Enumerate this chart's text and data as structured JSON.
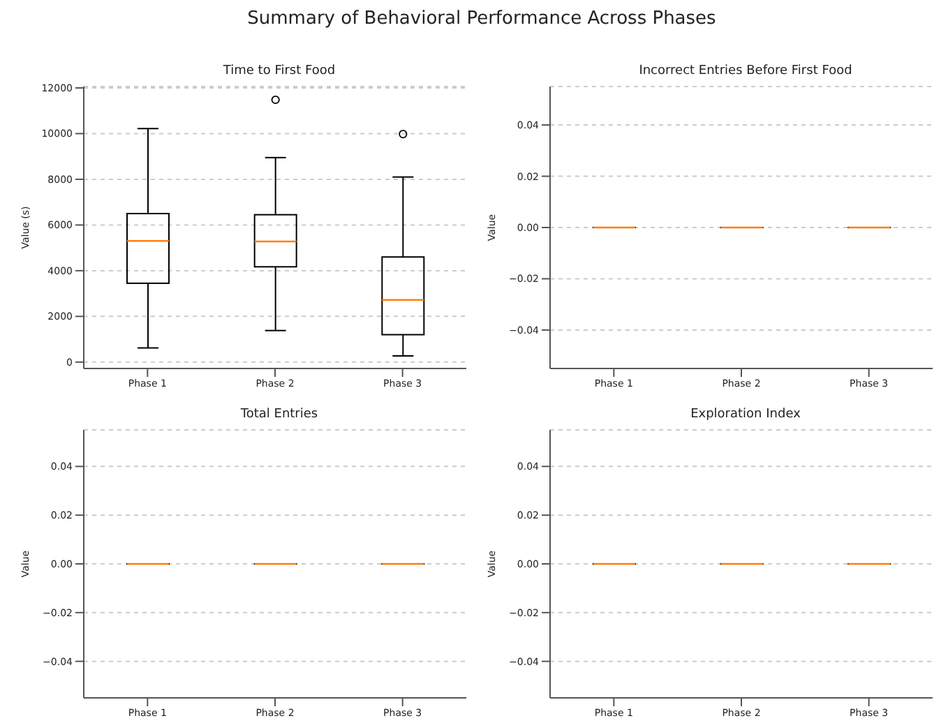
{
  "chart_data": [
    {
      "type": "box",
      "title": "Time to First Food",
      "ylabel": "Value (s)",
      "annotations": [
        "Summary of Behavioral Performance Across Phases"
      ],
      "categories": [
        "Phase 1",
        "Phase 2",
        "Phase 3"
      ],
      "boxes": [
        {
          "low": 620,
          "q1": 3450,
          "median": 5300,
          "q3": 6500,
          "high": 10220
        },
        {
          "low": 1380,
          "q1": 4170,
          "median": 5280,
          "q3": 6450,
          "high": 8950,
          "outliers": [
            11480
          ]
        },
        {
          "low": 270,
          "q1": 1200,
          "median": 2720,
          "q3": 4600,
          "high": 8100,
          "outliers": [
            9980
          ]
        }
      ],
      "ylim": [
        -280,
        12060
      ],
      "yticks": [
        0,
        2000,
        4000,
        6000,
        8000,
        10000,
        12000
      ],
      "grid": "y"
    },
    {
      "type": "box",
      "title": "Incorrect Entries Before First Food",
      "ylabel": "Value",
      "categories": [
        "Phase 1",
        "Phase 2",
        "Phase 3"
      ],
      "boxes": [
        {
          "low": 0,
          "q1": 0,
          "median": 0,
          "q3": 0,
          "high": 0
        },
        {
          "low": 0,
          "q1": 0,
          "median": 0,
          "q3": 0,
          "high": 0
        },
        {
          "low": 0,
          "q1": 0,
          "median": 0,
          "q3": 0,
          "high": 0
        }
      ],
      "ylim": [
        -0.055,
        0.055
      ],
      "yticks": [
        {
          "value": -0.04,
          "label": "−0.04"
        },
        {
          "value": -0.02,
          "label": "−0.02"
        },
        {
          "value": 0,
          "label": "0.00"
        },
        {
          "value": 0.02,
          "label": "0.02"
        },
        {
          "value": 0.04,
          "label": "0.04"
        }
      ],
      "grid": "y"
    },
    {
      "type": "box",
      "title": "Total Entries",
      "ylabel": "Value",
      "categories": [
        "Phase 1",
        "Phase 2",
        "Phase 3"
      ],
      "boxes": [
        {
          "low": 0,
          "q1": 0,
          "median": 0,
          "q3": 0,
          "high": 0
        },
        {
          "low": 0,
          "q1": 0,
          "median": 0,
          "q3": 0,
          "high": 0
        },
        {
          "low": 0,
          "q1": 0,
          "median": 0,
          "q3": 0,
          "high": 0
        }
      ],
      "ylim": [
        -0.055,
        0.055
      ],
      "yticks": [
        {
          "value": -0.04,
          "label": "−0.04"
        },
        {
          "value": -0.02,
          "label": "−0.02"
        },
        {
          "value": 0,
          "label": "0.00"
        },
        {
          "value": 0.02,
          "label": "0.02"
        },
        {
          "value": 0.04,
          "label": "0.04"
        }
      ],
      "grid": "y"
    },
    {
      "type": "box",
      "title": "Exploration Index",
      "ylabel": "Value",
      "categories": [
        "Phase 1",
        "Phase 2",
        "Phase 3"
      ],
      "boxes": [
        {
          "low": 0,
          "q1": 0,
          "median": 0,
          "q3": 0,
          "high": 0
        },
        {
          "low": 0,
          "q1": 0,
          "median": 0,
          "q3": 0,
          "high": 0
        },
        {
          "low": 0,
          "q1": 0,
          "median": 0,
          "q3": 0,
          "high": 0
        }
      ],
      "ylim": [
        -0.055,
        0.055
      ],
      "yticks": [
        {
          "value": -0.04,
          "label": "−0.04"
        },
        {
          "value": -0.02,
          "label": "−0.02"
        },
        {
          "value": 0,
          "label": "0.00"
        },
        {
          "value": 0.02,
          "label": "0.02"
        },
        {
          "value": 0.04,
          "label": "0.04"
        }
      ],
      "grid": "y"
    }
  ]
}
